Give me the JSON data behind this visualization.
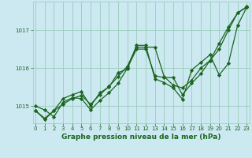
{
  "xlabel": "Graphe pression niveau de la mer (hPa)",
  "background_color": "#cce8f0",
  "grid_color": "#99ccbb",
  "line_color": "#1a6620",
  "x_ticks": [
    0,
    1,
    2,
    3,
    4,
    5,
    6,
    7,
    8,
    9,
    10,
    11,
    12,
    13,
    14,
    15,
    16,
    17,
    18,
    19,
    20,
    21,
    22,
    23
  ],
  "xlim": [
    -0.3,
    23.3
  ],
  "ylim": [
    1014.55,
    1017.75
  ],
  "yticks": [
    1015,
    1016,
    1017
  ],
  "series": [
    [
      1015.0,
      1014.9,
      1014.72,
      1015.1,
      1015.22,
      1015.2,
      1014.9,
      1015.15,
      1015.35,
      1015.6,
      1016.0,
      1016.5,
      1016.5,
      1015.8,
      1015.75,
      1015.75,
      1015.3,
      1015.6,
      1015.85,
      1016.2,
      1016.5,
      1017.0,
      1017.45,
      1017.6
    ],
    [
      1014.88,
      1014.68,
      1014.88,
      1015.05,
      1015.2,
      1015.28,
      1015.05,
      1015.3,
      1015.52,
      1015.78,
      1016.05,
      1016.55,
      1016.55,
      1016.55,
      1015.78,
      1015.55,
      1015.48,
      1015.68,
      1016.0,
      1016.2,
      1016.65,
      1017.08,
      1017.45,
      1017.62
    ],
    [
      1014.88,
      1014.65,
      1014.88,
      1015.2,
      1015.3,
      1015.38,
      1015.0,
      1015.35,
      1015.5,
      1015.88,
      1015.98,
      1016.6,
      1016.6,
      1015.72,
      1015.62,
      1015.48,
      1015.18,
      1015.95,
      1016.15,
      1016.35,
      1015.82,
      1016.12,
      1017.12,
      1017.6
    ]
  ],
  "straight_line": [
    1014.88,
    1017.62
  ],
  "marker": "D",
  "markersize": 2.2,
  "linewidth": 0.9,
  "tick_fontsize": 5,
  "label_fontsize": 6.5,
  "tick_color": "#1a6620",
  "label_color": "#1a6620"
}
